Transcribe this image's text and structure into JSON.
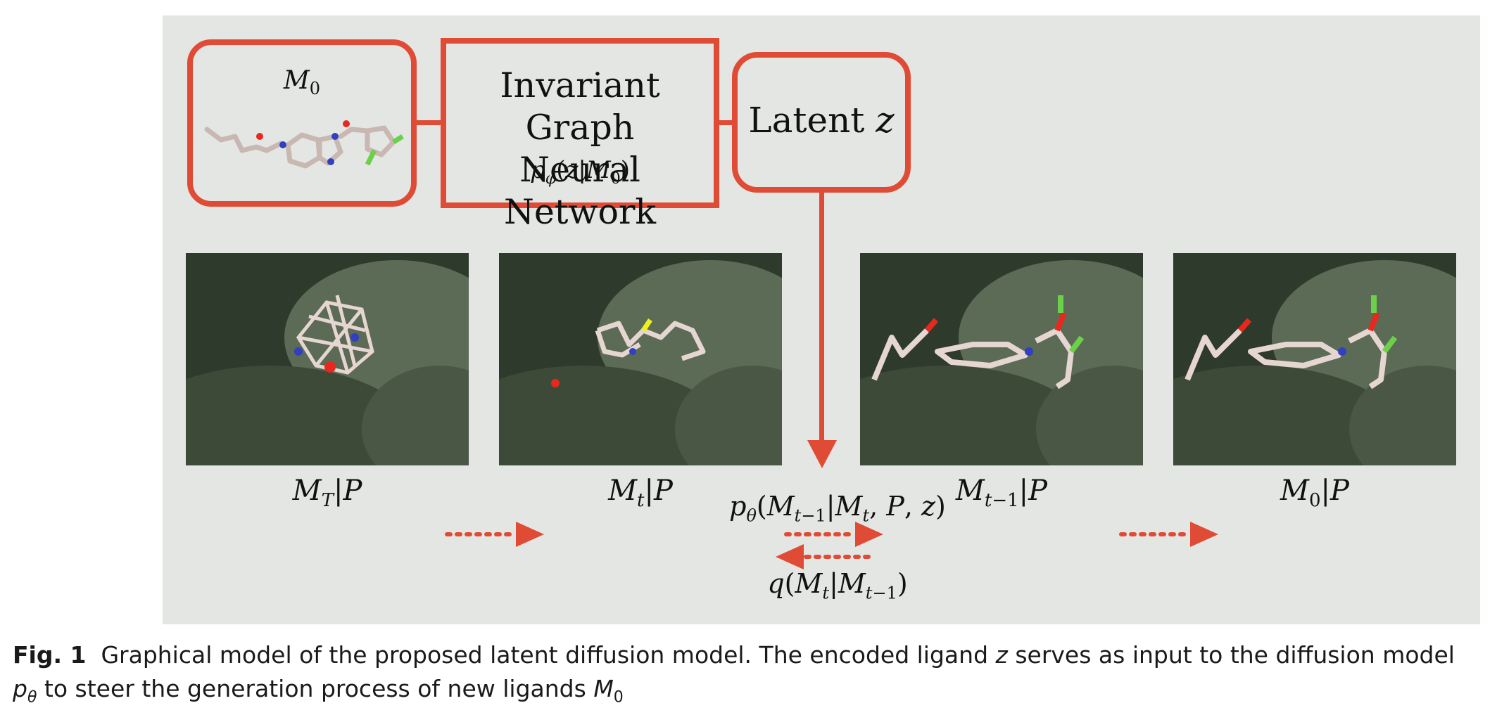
{
  "diagram": {
    "encoder_input_label": "M_0",
    "encoder_title_line1": "Invariant Graph",
    "encoder_title_line2": "Neural Network",
    "encoder_formula": "p_φ(z|M_0)",
    "latent_label": "Latent",
    "latent_var": "z",
    "panels": [
      {
        "label": "M_T|P"
      },
      {
        "label": "M_t|P"
      },
      {
        "label": "M_{t−1}|P"
      },
      {
        "label": "M_0|P"
      }
    ],
    "forward_formula": "p_θ(M_{t−1}|M_t, P, z)",
    "reverse_formula": "q(M_t|M_{t−1})"
  },
  "caption": {
    "prefix": "Fig. 1",
    "text_part1": "Graphical model of the proposed latent diffusion model. The encoded ligand",
    "z": "z",
    "text_part2": "serves as input to the diffusion model",
    "ptheta": "p",
    "ptheta_sub": "θ",
    "text_part3": "to steer the generation process of new ligands",
    "m0": "M",
    "m0_sub": "0"
  },
  "colors": {
    "accent": "#e04b35",
    "panel_bg": "#e3e6e3",
    "pocket": "#3d4a38"
  }
}
